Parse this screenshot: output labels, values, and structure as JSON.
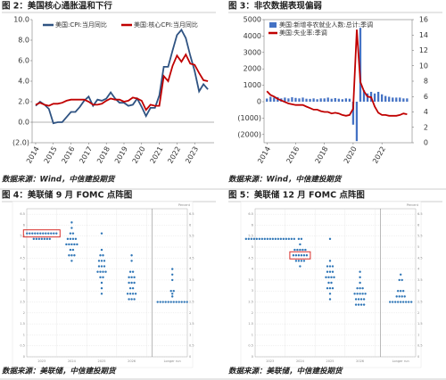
{
  "chart_data": [
    {
      "type": "line",
      "title": "图 2：美国核心通胀温和下行",
      "source": "数据来源：Wind，中信建投期货",
      "x": [
        2014.0,
        2014.25,
        2014.5,
        2014.75,
        2015.0,
        2015.25,
        2015.5,
        2015.75,
        2016.0,
        2016.25,
        2016.5,
        2016.75,
        2017.0,
        2017.25,
        2017.5,
        2017.75,
        2018.0,
        2018.25,
        2018.5,
        2018.75,
        2019.0,
        2019.25,
        2019.5,
        2019.75,
        2020.0,
        2020.25,
        2020.5,
        2020.75,
        2021.0,
        2021.25,
        2021.5,
        2021.75,
        2022.0,
        2022.25,
        2022.5,
        2022.75,
        2023.0,
        2023.25,
        2023.5,
        2023.75
      ],
      "xlim": [
        2013.8,
        2024.1
      ],
      "xticks": [
        2014,
        2015,
        2016,
        2017,
        2018,
        2019,
        2020,
        2021,
        2022,
        2023
      ],
      "ylim": [
        -2,
        10
      ],
      "yticks": [
        {
          "value": -2,
          "label": "(2.0)"
        },
        {
          "value": 0,
          "label": "0.0"
        },
        {
          "value": 2,
          "label": "2.0"
        },
        {
          "value": 4,
          "label": "4.0"
        },
        {
          "value": 6,
          "label": "6.0"
        },
        {
          "value": 8,
          "label": "8.0"
        },
        {
          "value": 10,
          "label": "10.0"
        }
      ],
      "series": [
        {
          "name": "美国:CPI:当月同比",
          "color": "#2f5382",
          "values": [
            1.6,
            2.0,
            1.7,
            1.3,
            -0.1,
            0.0,
            0.0,
            0.5,
            1.0,
            1.0,
            1.5,
            2.1,
            2.5,
            1.6,
            2.2,
            2.1,
            2.3,
            2.9,
            2.3,
            1.9,
            1.9,
            1.6,
            1.7,
            2.3,
            1.5,
            0.6,
            1.4,
            1.4,
            2.6,
            5.4,
            5.4,
            7.0,
            8.5,
            9.0,
            8.2,
            6.5,
            5.0,
            3.0,
            3.7,
            3.2
          ]
        },
        {
          "name": "美国:核心CPI:当月同比",
          "color": "#c00000",
          "values": [
            1.7,
            1.9,
            1.7,
            1.6,
            1.8,
            1.8,
            1.9,
            2.1,
            2.2,
            2.2,
            2.2,
            2.2,
            2.0,
            1.7,
            1.7,
            1.8,
            2.1,
            2.3,
            2.2,
            2.2,
            2.0,
            2.1,
            2.4,
            2.3,
            2.1,
            1.2,
            1.7,
            1.6,
            1.6,
            4.5,
            4.0,
            5.5,
            6.5,
            5.9,
            6.6,
            5.7,
            5.6,
            4.8,
            4.1,
            4.0
          ]
        }
      ]
    },
    {
      "type": "bar",
      "title": "图 3：非农数据表现偏弱",
      "source": "数据来源：Wind，中信建投期货",
      "x": [
        2014.0,
        2014.25,
        2014.5,
        2014.75,
        2015.0,
        2015.25,
        2015.5,
        2015.75,
        2016.0,
        2016.25,
        2016.5,
        2016.75,
        2017.0,
        2017.25,
        2017.5,
        2017.75,
        2018.0,
        2018.25,
        2018.5,
        2018.75,
        2019.0,
        2019.25,
        2019.5,
        2019.75,
        2020.0,
        2020.25,
        2020.5,
        2020.75,
        2021.0,
        2021.25,
        2021.5,
        2021.75,
        2022.0,
        2022.25,
        2022.5,
        2022.75,
        2023.0,
        2023.25,
        2023.5,
        2023.75
      ],
      "xlim": [
        2013.8,
        2024.1
      ],
      "xticks": [
        2014,
        2016,
        2018,
        2020,
        2022
      ],
      "ylim": [
        -2500,
        5000
      ],
      "yticks": [
        {
          "value": -2000,
          "label": "(2000)"
        },
        {
          "value": -1000,
          "label": "(1000)"
        },
        0,
        1000,
        2000,
        3000,
        4000,
        5000
      ],
      "y2lim": [
        0,
        16
      ],
      "y2ticks": [
        0,
        2,
        4,
        6,
        8,
        10,
        12,
        14,
        16
      ],
      "series": [
        {
          "name": "美国:新增非农就业人数:总计:季调",
          "type": "bar",
          "color": "#4472c4",
          "values": [
            190,
            300,
            250,
            280,
            200,
            250,
            200,
            270,
            230,
            200,
            250,
            180,
            170,
            200,
            150,
            200,
            200,
            250,
            180,
            220,
            180,
            150,
            200,
            180,
            -1400,
            -2400,
            4500,
            700,
            500,
            600,
            500,
            600,
            450,
            350,
            300,
            250,
            250,
            250,
            200,
            200
          ]
        },
        {
          "name": "美国:失业率:季调",
          "type": "line",
          "axis": "y2",
          "color": "#c00000",
          "values": [
            6.7,
            6.2,
            6.0,
            5.7,
            5.5,
            5.3,
            5.1,
            5.0,
            4.9,
            4.9,
            4.9,
            4.7,
            4.5,
            4.3,
            4.3,
            4.1,
            4.0,
            4.0,
            3.8,
            3.9,
            3.8,
            3.6,
            3.5,
            3.6,
            4.4,
            14.7,
            7.9,
            6.7,
            6.0,
            5.9,
            4.7,
            3.9,
            3.6,
            3.6,
            3.5,
            3.5,
            3.5,
            3.6,
            3.8,
            3.7
          ]
        }
      ]
    },
    {
      "type": "dotplot",
      "title": "图 4：美联储 9 月 FOMC 点阵图",
      "source": "数据来源：美联储，中信建投期货",
      "y_label": "Percent",
      "categories": [
        "2023",
        "2024",
        "2025",
        "2026",
        "Longer run"
      ],
      "ylim": [
        0,
        6.75
      ],
      "yticks": [
        0,
        0.5,
        1,
        1.5,
        2,
        2.5,
        3,
        3.5,
        4,
        4.5,
        5,
        5.5,
        6,
        6.5
      ],
      "color": "#2e75b6",
      "highlight": {
        "dots": 0,
        "index": 0,
        "color": "#d9302c"
      },
      "dots": [
        {
          "values": [
            5.625,
            5.375
          ],
          "counts": [
            12,
            7
          ]
        },
        {
          "values": [
            6.125,
            5.875,
            5.625,
            5.375,
            5.125,
            4.875,
            4.625,
            4.375
          ],
          "counts": [
            1,
            1,
            2,
            4,
            5,
            2,
            3,
            1
          ]
        },
        {
          "values": [
            5.625,
            4.875,
            4.625,
            4.375,
            4.125,
            3.875,
            3.625,
            3.375,
            3.125,
            2.875
          ],
          "counts": [
            1,
            1,
            2,
            3,
            3,
            4,
            2,
            1,
            1,
            1
          ]
        },
        {
          "values": [
            4.625,
            4.375,
            3.875,
            3.625,
            3.375,
            3.125,
            2.875,
            2.625
          ],
          "counts": [
            1,
            1,
            2,
            3,
            3,
            2,
            4,
            3
          ]
        },
        {
          "values": [
            4.0,
            3.75,
            3.5,
            3.0,
            2.875,
            2.75,
            2.5
          ],
          "counts": [
            1,
            1,
            1,
            2,
            1,
            1,
            12
          ]
        }
      ]
    },
    {
      "type": "dotplot",
      "title": "图 5：美联储 12 月 FOMC 点阵图",
      "source": "数据来源：美联储，中信建投期货",
      "y_label": "Percent",
      "categories": [
        "2023",
        "2024",
        "2025",
        "2026",
        "Longer run"
      ],
      "ylim": [
        0,
        6.75
      ],
      "yticks": [
        0,
        0.5,
        1,
        1.5,
        2,
        2.5,
        3,
        3.5,
        4,
        4.5,
        5,
        5.5,
        6,
        6.5
      ],
      "color": "#2e75b6",
      "highlight": {
        "dots": 1,
        "index": 3,
        "color": "#d9302c"
      },
      "dots": [
        {
          "values": [
            5.375
          ],
          "counts": [
            19
          ]
        },
        {
          "values": [
            5.375,
            5.125,
            4.875,
            4.625,
            4.375,
            4.125
          ],
          "counts": [
            2,
            1,
            5,
            6,
            4,
            1
          ]
        },
        {
          "values": [
            5.375,
            4.375,
            4.125,
            3.875,
            3.625,
            3.375,
            3.125,
            2.875,
            2.625
          ],
          "counts": [
            1,
            1,
            3,
            3,
            4,
            2,
            3,
            1,
            1
          ]
        },
        {
          "values": [
            3.875,
            3.625,
            3.375,
            3.125,
            2.875,
            2.625,
            2.375
          ],
          "counts": [
            1,
            1,
            1,
            3,
            5,
            4,
            4
          ]
        },
        {
          "values": [
            3.75,
            3.5,
            3.0,
            2.75,
            2.5
          ],
          "counts": [
            1,
            2,
            3,
            4,
            9
          ]
        }
      ]
    }
  ]
}
